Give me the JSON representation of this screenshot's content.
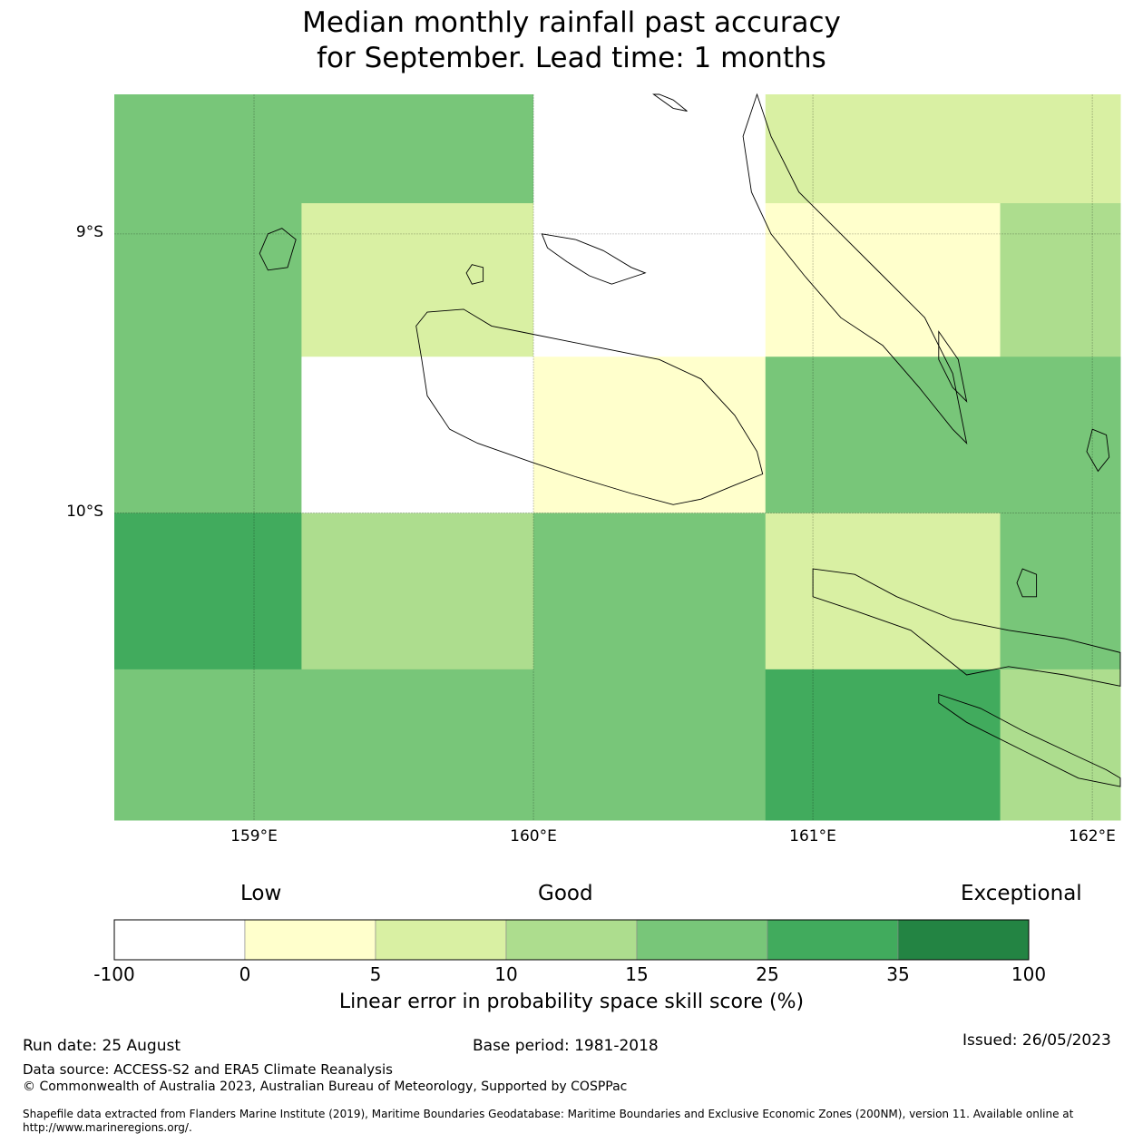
{
  "title_line1": "Median monthly rainfall past accuracy",
  "title_line2": "for September. Lead time: 1 months",
  "map": {
    "lon_range": [
      158.5,
      162.1
    ],
    "lat_range": [
      -11.1,
      -8.5
    ],
    "lat_ticks": [
      {
        "value": -9,
        "label": "9°S"
      },
      {
        "value": -10,
        "label": "10°S"
      }
    ],
    "lon_ticks": [
      {
        "value": 159,
        "label": "159°E"
      },
      {
        "value": 160,
        "label": "160°E"
      },
      {
        "value": 161,
        "label": "161°E"
      },
      {
        "value": 162,
        "label": "162°E"
      }
    ],
    "grid": true,
    "cells": [
      {
        "lon": [
          158.5,
          160.0
        ],
        "lat": [
          -8.89,
          -8.5
        ],
        "score": 20
      },
      {
        "lon": [
          160.0,
          160.83
        ],
        "lat": [
          -8.89,
          -8.5
        ],
        "score": -50
      },
      {
        "lon": [
          160.83,
          162.1
        ],
        "lat": [
          -8.89,
          -8.5
        ],
        "score": 7
      },
      {
        "lon": [
          158.5,
          159.17
        ],
        "lat": [
          -9.44,
          -8.89
        ],
        "score": 20
      },
      {
        "lon": [
          159.17,
          160.0
        ],
        "lat": [
          -9.44,
          -8.89
        ],
        "score": 7
      },
      {
        "lon": [
          160.0,
          160.83
        ],
        "lat": [
          -9.44,
          -8.89
        ],
        "score": -50
      },
      {
        "lon": [
          160.83,
          161.67
        ],
        "lat": [
          -9.44,
          -8.89
        ],
        "score": 2
      },
      {
        "lon": [
          161.67,
          162.1
        ],
        "lat": [
          -9.44,
          -8.89
        ],
        "score": 12
      },
      {
        "lon": [
          158.5,
          159.17
        ],
        "lat": [
          -10.0,
          -9.44
        ],
        "score": 20
      },
      {
        "lon": [
          159.17,
          160.0
        ],
        "lat": [
          -10.0,
          -9.44
        ],
        "score": -50
      },
      {
        "lon": [
          160.0,
          160.83
        ],
        "lat": [
          -10.0,
          -9.44
        ],
        "score": 2
      },
      {
        "lon": [
          160.83,
          162.1
        ],
        "lat": [
          -10.0,
          -9.44
        ],
        "score": 20
      },
      {
        "lon": [
          158.5,
          159.17
        ],
        "lat": [
          -10.56,
          -10.0
        ],
        "score": 30
      },
      {
        "lon": [
          159.17,
          160.0
        ],
        "lat": [
          -10.56,
          -10.0
        ],
        "score": 12
      },
      {
        "lon": [
          160.0,
          160.83
        ],
        "lat": [
          -10.56,
          -10.0
        ],
        "score": 20
      },
      {
        "lon": [
          160.83,
          161.67
        ],
        "lat": [
          -10.56,
          -10.0
        ],
        "score": 7
      },
      {
        "lon": [
          161.67,
          162.1
        ],
        "lat": [
          -10.56,
          -10.0
        ],
        "score": 20
      },
      {
        "lon": [
          158.5,
          160.83
        ],
        "lat": [
          -11.1,
          -10.56
        ],
        "score": 20
      },
      {
        "lon": [
          160.83,
          161.67
        ],
        "lat": [
          -11.1,
          -10.56
        ],
        "score": 30
      },
      {
        "lon": [
          161.67,
          162.1
        ],
        "lat": [
          -11.1,
          -10.56
        ],
        "score": 12
      }
    ],
    "land": [
      [
        [
          159.95,
          -9.35
        ],
        [
          160.2,
          -9.4
        ],
        [
          160.45,
          -9.45
        ],
        [
          160.6,
          -9.52
        ],
        [
          160.72,
          -9.65
        ],
        [
          160.8,
          -9.78
        ],
        [
          160.82,
          -9.86
        ],
        [
          160.72,
          -9.9
        ],
        [
          160.6,
          -9.95
        ],
        [
          160.5,
          -9.97
        ],
        [
          160.35,
          -9.93
        ],
        [
          160.15,
          -9.87
        ],
        [
          160.0,
          -9.82
        ],
        [
          159.8,
          -9.75
        ],
        [
          159.7,
          -9.7
        ],
        [
          159.62,
          -9.58
        ],
        [
          159.6,
          -9.45
        ],
        [
          159.58,
          -9.33
        ],
        [
          159.62,
          -9.28
        ],
        [
          159.75,
          -9.27
        ],
        [
          159.85,
          -9.33
        ],
        [
          159.95,
          -9.35
        ]
      ],
      [
        [
          160.03,
          -9.0
        ],
        [
          160.15,
          -9.02
        ],
        [
          160.25,
          -9.06
        ],
        [
          160.35,
          -9.12
        ],
        [
          160.4,
          -9.14
        ],
        [
          160.28,
          -9.18
        ],
        [
          160.2,
          -9.15
        ],
        [
          160.12,
          -9.1
        ],
        [
          160.05,
          -9.05
        ],
        [
          160.03,
          -9.0
        ]
      ],
      [
        [
          159.05,
          -9.0
        ],
        [
          159.1,
          -8.98
        ],
        [
          159.15,
          -9.02
        ],
        [
          159.12,
          -9.12
        ],
        [
          159.05,
          -9.13
        ],
        [
          159.02,
          -9.07
        ],
        [
          159.05,
          -9.0
        ]
      ],
      [
        [
          159.78,
          -9.11
        ],
        [
          159.82,
          -9.12
        ],
        [
          159.82,
          -9.17
        ],
        [
          159.78,
          -9.18
        ],
        [
          159.76,
          -9.14
        ],
        [
          159.78,
          -9.11
        ]
      ],
      [
        [
          160.8,
          -8.5
        ],
        [
          160.85,
          -8.65
        ],
        [
          160.95,
          -8.85
        ],
        [
          161.1,
          -9.0
        ],
        [
          161.25,
          -9.15
        ],
        [
          161.4,
          -9.3
        ],
        [
          161.5,
          -9.5
        ],
        [
          161.55,
          -9.75
        ],
        [
          161.5,
          -9.7
        ],
        [
          161.38,
          -9.55
        ],
        [
          161.25,
          -9.4
        ],
        [
          161.1,
          -9.3
        ],
        [
          160.97,
          -9.15
        ],
        [
          160.85,
          -9.0
        ],
        [
          160.78,
          -8.85
        ],
        [
          160.75,
          -8.65
        ],
        [
          160.8,
          -8.5
        ]
      ],
      [
        [
          161.45,
          -9.35
        ],
        [
          161.52,
          -9.45
        ],
        [
          161.55,
          -9.6
        ],
        [
          161.5,
          -9.55
        ],
        [
          161.45,
          -9.45
        ],
        [
          161.45,
          -9.35
        ]
      ],
      [
        [
          161.0,
          -10.2
        ],
        [
          161.15,
          -10.22
        ],
        [
          161.3,
          -10.3
        ],
        [
          161.5,
          -10.38
        ],
        [
          161.7,
          -10.42
        ],
        [
          161.9,
          -10.45
        ],
        [
          162.1,
          -10.5
        ],
        [
          162.1,
          -10.62
        ],
        [
          161.9,
          -10.58
        ],
        [
          161.7,
          -10.55
        ],
        [
          161.55,
          -10.58
        ],
        [
          161.45,
          -10.5
        ],
        [
          161.35,
          -10.42
        ],
        [
          161.15,
          -10.35
        ],
        [
          161.0,
          -10.3
        ],
        [
          161.0,
          -10.2
        ]
      ],
      [
        [
          161.45,
          -10.65
        ],
        [
          161.6,
          -10.7
        ],
        [
          161.75,
          -10.78
        ],
        [
          161.9,
          -10.85
        ],
        [
          162.05,
          -10.92
        ],
        [
          162.1,
          -10.95
        ],
        [
          162.1,
          -10.98
        ],
        [
          161.95,
          -10.95
        ],
        [
          161.75,
          -10.85
        ],
        [
          161.55,
          -10.75
        ],
        [
          161.45,
          -10.68
        ],
        [
          161.45,
          -10.65
        ]
      ],
      [
        [
          162.0,
          -9.7
        ],
        [
          162.05,
          -9.72
        ],
        [
          162.06,
          -9.8
        ],
        [
          162.02,
          -9.85
        ],
        [
          161.98,
          -9.78
        ],
        [
          162.0,
          -9.7
        ]
      ],
      [
        [
          161.75,
          -10.2
        ],
        [
          161.8,
          -10.22
        ],
        [
          161.8,
          -10.3
        ],
        [
          161.75,
          -10.3
        ],
        [
          161.73,
          -10.25
        ],
        [
          161.75,
          -10.2
        ]
      ],
      [
        [
          160.43,
          -8.5
        ],
        [
          160.5,
          -8.55
        ],
        [
          160.55,
          -8.56
        ],
        [
          160.5,
          -8.52
        ],
        [
          160.45,
          -8.5
        ],
        [
          160.43,
          -8.5
        ]
      ]
    ]
  },
  "colorbar": {
    "low_label": "Low",
    "good_label": "Good",
    "exceptional_label": "Exceptional",
    "title": "Linear error in probability space skill score (%)",
    "bins": [
      {
        "from": -100,
        "to": 0,
        "color": "#ffffff"
      },
      {
        "from": 0,
        "to": 5,
        "color": "#ffffcc"
      },
      {
        "from": 5,
        "to": 10,
        "color": "#d9f0a3"
      },
      {
        "from": 10,
        "to": 15,
        "color": "#addd8e"
      },
      {
        "from": 15,
        "to": 25,
        "color": "#78c679"
      },
      {
        "from": 25,
        "to": 35,
        "color": "#41ab5d"
      },
      {
        "from": 35,
        "to": 100,
        "color": "#238443"
      }
    ],
    "ticks": [
      "-100",
      "0",
      "5",
      "10",
      "15",
      "25",
      "35",
      "100"
    ]
  },
  "footer": {
    "run_date": "Run date: 25 August",
    "base_period": "Base period: 1981-2018",
    "issued": "Issued: 26/05/2023",
    "data_source": "Data source: ACCESS-S2 and ERA5 Climate Reanalysis",
    "copyright": "© Commonwealth of Australia 2023, Australian Bureau of Meteorology, Supported by COSPPac",
    "shapefile_line1": "Shapefile data extracted from Flanders Marine Institute (2019), Maritime Boundaries Geodatabase: Maritime Boundaries and Exclusive Economic Zones (200NM), version 11. Available online at",
    "shapefile_line2": "http://www.marineregions.org/."
  }
}
